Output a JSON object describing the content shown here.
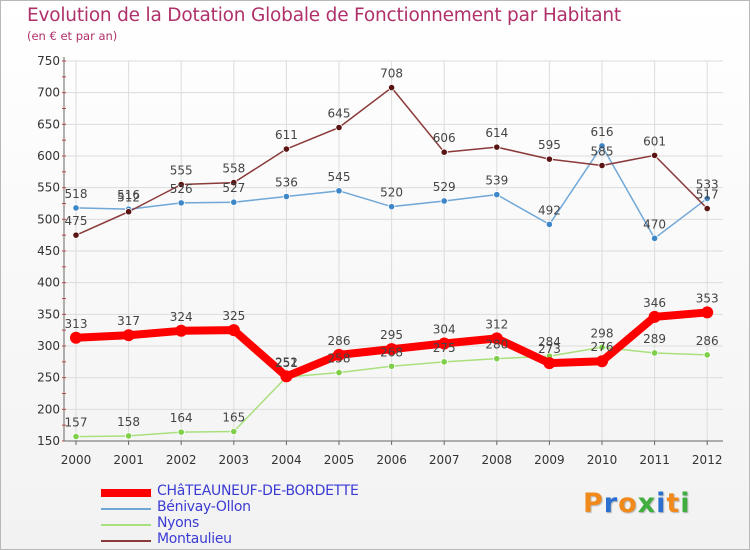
{
  "chart_data": {
    "type": "line",
    "title": "Evolution de la Dotation Globale de Fonctionnement par Habitant",
    "subtitle": "(en € et par an)",
    "xlabel": "",
    "ylabel": "",
    "ylim": [
      150,
      750
    ],
    "yticks": [
      150,
      200,
      250,
      300,
      350,
      400,
      450,
      500,
      550,
      600,
      650,
      700,
      750
    ],
    "x": [
      2000,
      2001,
      2002,
      2003,
      2004,
      2005,
      2006,
      2007,
      2008,
      2009,
      2010,
      2011,
      2012
    ],
    "grid": true,
    "series": [
      {
        "name": "CHâTEAUNEUF-DE-BORDETTE",
        "color": "#ff0000",
        "marker_color": "#ff0000",
        "thick": true,
        "values": [
          313,
          317,
          324,
          325,
          252,
          286,
          295,
          304,
          312,
          273,
          276,
          346,
          353
        ]
      },
      {
        "name": "Bénivay-Ollon",
        "color": "#6fa7d6",
        "marker_color": "#3d86c8",
        "thick": false,
        "values": [
          518,
          516,
          526,
          527,
          536,
          545,
          520,
          529,
          539,
          492,
          616,
          470,
          533
        ]
      },
      {
        "name": "Nyons",
        "color": "#a9e07e",
        "marker_color": "#7fcf4a",
        "thick": false,
        "values": [
          157,
          158,
          164,
          165,
          251,
          258,
          268,
          275,
          280,
          284,
          298,
          289,
          286
        ]
      },
      {
        "name": "Montaulieu",
        "color": "#8b3a3a",
        "marker_color": "#5a1414",
        "thick": false,
        "values": [
          475,
          512,
          555,
          558,
          611,
          645,
          708,
          606,
          614,
          595,
          585,
          601,
          517
        ]
      }
    ],
    "legend_position": "bottom-left"
  },
  "logo": {
    "text": "Proxiti",
    "letters": [
      "P",
      "r",
      "o",
      "x",
      "i",
      "t",
      "i"
    ],
    "colors": [
      "#f08a1c",
      "#2b6fd1",
      "#f08a1c",
      "#3fae3f",
      "#2b6fd1",
      "#f08a1c",
      "#3fae3f"
    ]
  }
}
